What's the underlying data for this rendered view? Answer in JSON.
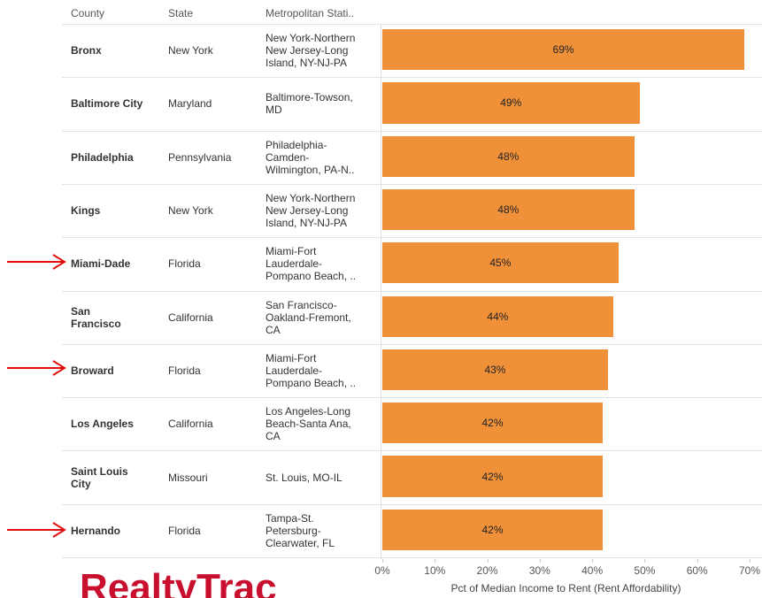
{
  "headers": [
    "County",
    "State",
    "Metropolitan Stati.."
  ],
  "chart_data": {
    "type": "bar",
    "counties": [
      [
        "Bronx"
      ],
      [
        "Baltimore City"
      ],
      [
        "Philadelphia"
      ],
      [
        "Kings"
      ],
      [
        "Miami-Dade"
      ],
      [
        "San",
        "Francisco"
      ],
      [
        "Broward"
      ],
      [
        "Los Angeles"
      ],
      [
        "Saint Louis",
        "City"
      ],
      [
        "Hernando"
      ]
    ],
    "states": [
      "New York",
      "Maryland",
      "Pennsylvania",
      "New York",
      "Florida",
      "California",
      "Florida",
      "California",
      "Missouri",
      "Florida"
    ],
    "metros": [
      [
        "New York-Northern",
        "New Jersey-Long",
        "Island, NY-NJ-PA"
      ],
      [
        "Baltimore-Towson,",
        "MD"
      ],
      [
        "Philadelphia-",
        "Camden-",
        "Wilmington, PA-N.."
      ],
      [
        "New York-Northern",
        "New Jersey-Long",
        "Island, NY-NJ-PA"
      ],
      [
        "Miami-Fort",
        "Lauderdale-",
        "Pompano Beach, .."
      ],
      [
        "San Francisco-",
        "Oakland-Fremont,",
        "CA"
      ],
      [
        "Miami-Fort",
        "Lauderdale-",
        "Pompano Beach, .."
      ],
      [
        "Los Angeles-Long",
        "Beach-Santa Ana,",
        "CA"
      ],
      [
        "St. Louis, MO-IL"
      ],
      [
        "Tampa-St.",
        "Petersburg-",
        "Clearwater, FL"
      ]
    ],
    "values": [
      69,
      49,
      48,
      48,
      45,
      44,
      43,
      42,
      42,
      42
    ],
    "value_labels": [
      "69%",
      "49%",
      "48%",
      "48%",
      "45%",
      "44%",
      "43%",
      "42%",
      "42%",
      "42%"
    ],
    "color": "#f0913a",
    "xlim": [
      0,
      70
    ],
    "xticks": [
      {
        "value": 0,
        "label": "0%"
      },
      {
        "value": 10,
        "label": "10%"
      },
      {
        "value": 20,
        "label": "20%"
      },
      {
        "value": 30,
        "label": "30%"
      },
      {
        "value": 40,
        "label": "40%"
      },
      {
        "value": 50,
        "label": "50%"
      },
      {
        "value": 60,
        "label": "60%"
      },
      {
        "value": 70,
        "label": "70%"
      }
    ],
    "x_label": "Pct of Median Income to Rent (Rent Affordability)"
  },
  "logo": "RealtyTrac"
}
